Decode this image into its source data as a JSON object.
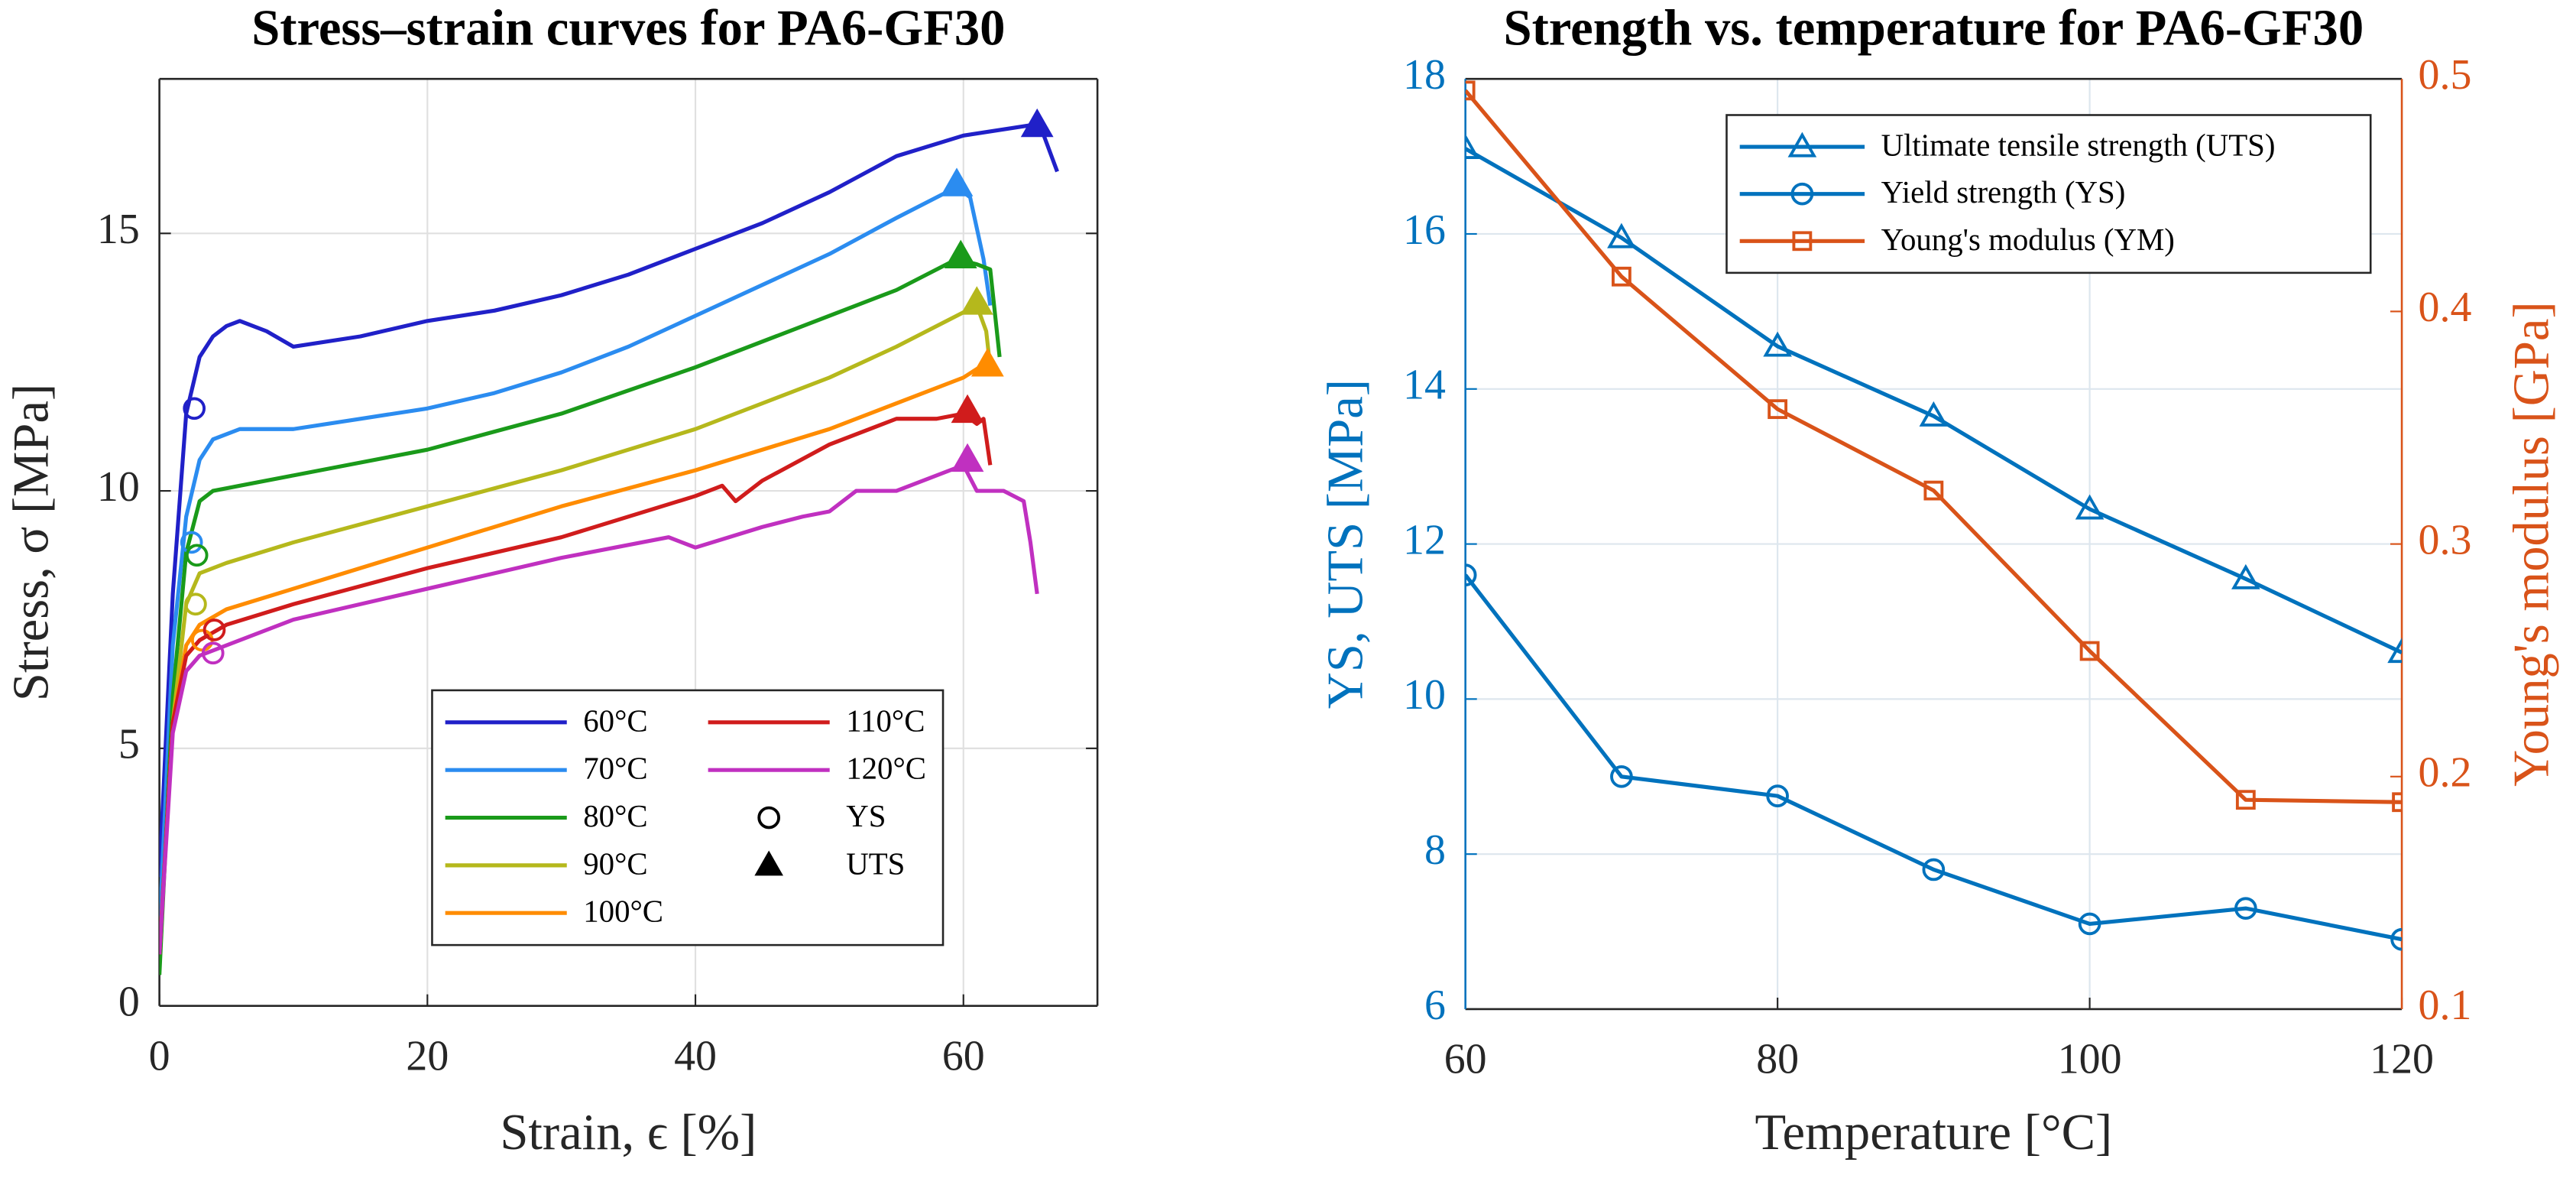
{
  "chart_data": [
    {
      "type": "line",
      "title": "Stress–strain curves for PA6-GF30",
      "xlabel": "Strain, ϵ [%]",
      "ylabel": "Stress, σ [MPa]",
      "xlim": [
        0,
        70
      ],
      "xticks": [
        0,
        20,
        40,
        60
      ],
      "ylim": [
        0,
        18
      ],
      "yticks": [
        0,
        5,
        10,
        15
      ],
      "grid": true,
      "legend": "lower right",
      "series": [
        {
          "name": "60°C",
          "color": "#2020c8",
          "x": [
            0,
            1,
            2,
            3,
            4,
            5,
            6,
            8,
            10,
            15,
            20,
            25,
            30,
            35,
            40,
            45,
            50,
            55,
            60,
            65,
            66,
            67
          ],
          "values": [
            2.5,
            8,
            11.5,
            12.6,
            13.0,
            13.2,
            13.3,
            13.1,
            12.8,
            13.0,
            13.3,
            13.5,
            13.8,
            14.2,
            14.7,
            15.2,
            15.8,
            16.5,
            16.9,
            17.1,
            16.9,
            16.2
          ]
        },
        {
          "name": "70°C",
          "color": "#2b8cf0",
          "x": [
            0,
            1,
            2,
            3,
            4,
            6,
            10,
            15,
            20,
            25,
            30,
            35,
            40,
            45,
            50,
            55,
            59.5,
            60.5,
            61.5,
            62
          ],
          "values": [
            1.5,
            7,
            9.5,
            10.6,
            11.0,
            11.2,
            11.2,
            11.4,
            11.6,
            11.9,
            12.3,
            12.8,
            13.4,
            14.0,
            14.6,
            15.3,
            15.9,
            15.7,
            14.5,
            13.6
          ]
        },
        {
          "name": "80°C",
          "color": "#1a9a1a",
          "x": [
            0,
            1,
            2,
            3,
            4,
            6,
            10,
            20,
            30,
            40,
            50,
            55,
            59.5,
            61,
            62,
            62.7
          ],
          "values": [
            0.6,
            6,
            8.8,
            9.8,
            10.0,
            10.1,
            10.3,
            10.8,
            11.5,
            12.4,
            13.4,
            13.9,
            14.5,
            14.4,
            14.3,
            12.6
          ]
        },
        {
          "name": "90°C",
          "color": "#b5b81c",
          "x": [
            0,
            1,
            2,
            3,
            5,
            10,
            20,
            30,
            40,
            50,
            55,
            61,
            61.7,
            62
          ],
          "values": [
            1.0,
            5.5,
            7.8,
            8.4,
            8.6,
            9.0,
            9.7,
            10.4,
            11.2,
            12.2,
            12.8,
            13.6,
            13.1,
            12.4
          ]
        },
        {
          "name": "100°C",
          "color": "#ff8c00",
          "x": [
            0,
            1,
            2,
            3,
            5,
            10,
            20,
            30,
            40,
            50,
            55,
            60,
            61.8,
            62.2
          ],
          "values": [
            1.0,
            5.5,
            7.0,
            7.4,
            7.7,
            8.1,
            8.9,
            9.7,
            10.4,
            11.2,
            11.7,
            12.2,
            12.5,
            12.3
          ]
        },
        {
          "name": "110°C",
          "color": "#d01c1c",
          "x": [
            0,
            1,
            2,
            3,
            5,
            10,
            20,
            30,
            40,
            42,
            43,
            45,
            50,
            55,
            58,
            60,
            61,
            61.5,
            62
          ],
          "values": [
            1,
            5.5,
            6.8,
            7.1,
            7.4,
            7.8,
            8.5,
            9.1,
            9.9,
            10.1,
            9.8,
            10.2,
            10.9,
            11.4,
            11.4,
            11.5,
            11.3,
            11.4,
            10.5
          ]
        },
        {
          "name": "120°C",
          "color": "#c030c0",
          "x": [
            0,
            1,
            2,
            3,
            5,
            10,
            20,
            30,
            38,
            40,
            45,
            48,
            50,
            52,
            55,
            60,
            61,
            63,
            64.5,
            65,
            65.5
          ],
          "values": [
            1,
            5.3,
            6.5,
            6.8,
            7.0,
            7.5,
            8.1,
            8.7,
            9.1,
            8.9,
            9.3,
            9.5,
            9.6,
            10.0,
            10.0,
            10.5,
            10.0,
            10.0,
            9.8,
            9.0,
            8.0
          ]
        },
        {
          "name": "YS",
          "color": "#000000",
          "line": false,
          "marker": "circle",
          "marker_fill": false,
          "point_colors": [
            "#2020c8",
            "#2b8cf0",
            "#1a9a1a",
            "#b5b81c",
            "#ff8c00",
            "#d01c1c",
            "#c030c0"
          ],
          "x": [
            2.6,
            2.4,
            2.8,
            2.7,
            3.2,
            4.1,
            4.0
          ],
          "values": [
            11.6,
            9.0,
            8.75,
            7.8,
            7.1,
            7.3,
            6.85
          ]
        },
        {
          "name": "UTS",
          "color": "#000000",
          "line": false,
          "marker": "triangle",
          "marker_fill": true,
          "point_colors": [
            "#2020c8",
            "#2b8cf0",
            "#1a9a1a",
            "#b5b81c",
            "#ff8c00",
            "#d01c1c",
            "#c030c0"
          ],
          "x": [
            65.5,
            59.5,
            59.8,
            61,
            61.8,
            60.3,
            60.3
          ],
          "values": [
            17.1,
            15.95,
            14.55,
            13.65,
            12.45,
            11.55,
            10.6
          ]
        }
      ]
    },
    {
      "type": "line",
      "title": "Strength vs. temperature for PA6-GF30",
      "xlabel": "Temperature [°C]",
      "ylabel": "YS, UTS [MPa]",
      "y2label": "Young's modulus [GPa]",
      "xlim": [
        60,
        120
      ],
      "xticks": [
        60,
        80,
        100,
        120
      ],
      "ylim": [
        6,
        18
      ],
      "yticks": [
        6,
        8,
        10,
        12,
        14,
        16,
        18
      ],
      "y2lim": [
        0.1,
        0.5
      ],
      "y2ticks": [
        0.1,
        0.2,
        0.3,
        0.4,
        0.5
      ],
      "grid": true,
      "legend": "upper right",
      "x": [
        60,
        70,
        80,
        90,
        100,
        110,
        120
      ],
      "series": [
        {
          "name": "Ultimate tensile strength (UTS)",
          "color": "#0072bd",
          "marker": "triangle",
          "marker_fill": false,
          "values": [
            17.1,
            15.95,
            14.55,
            13.65,
            12.45,
            11.55,
            10.6
          ]
        },
        {
          "name": "Yield strength (YS)",
          "color": "#0072bd",
          "marker": "circle",
          "marker_fill": false,
          "values": [
            11.6,
            9.0,
            8.75,
            7.8,
            7.1,
            7.3,
            6.9
          ]
        },
        {
          "name": "Young's modulus (YM)",
          "color": "#d95319",
          "marker": "square",
          "marker_fill": false,
          "axis": "y2",
          "values": [
            0.495,
            0.415,
            0.358,
            0.323,
            0.254,
            0.19,
            0.189
          ]
        }
      ]
    }
  ]
}
